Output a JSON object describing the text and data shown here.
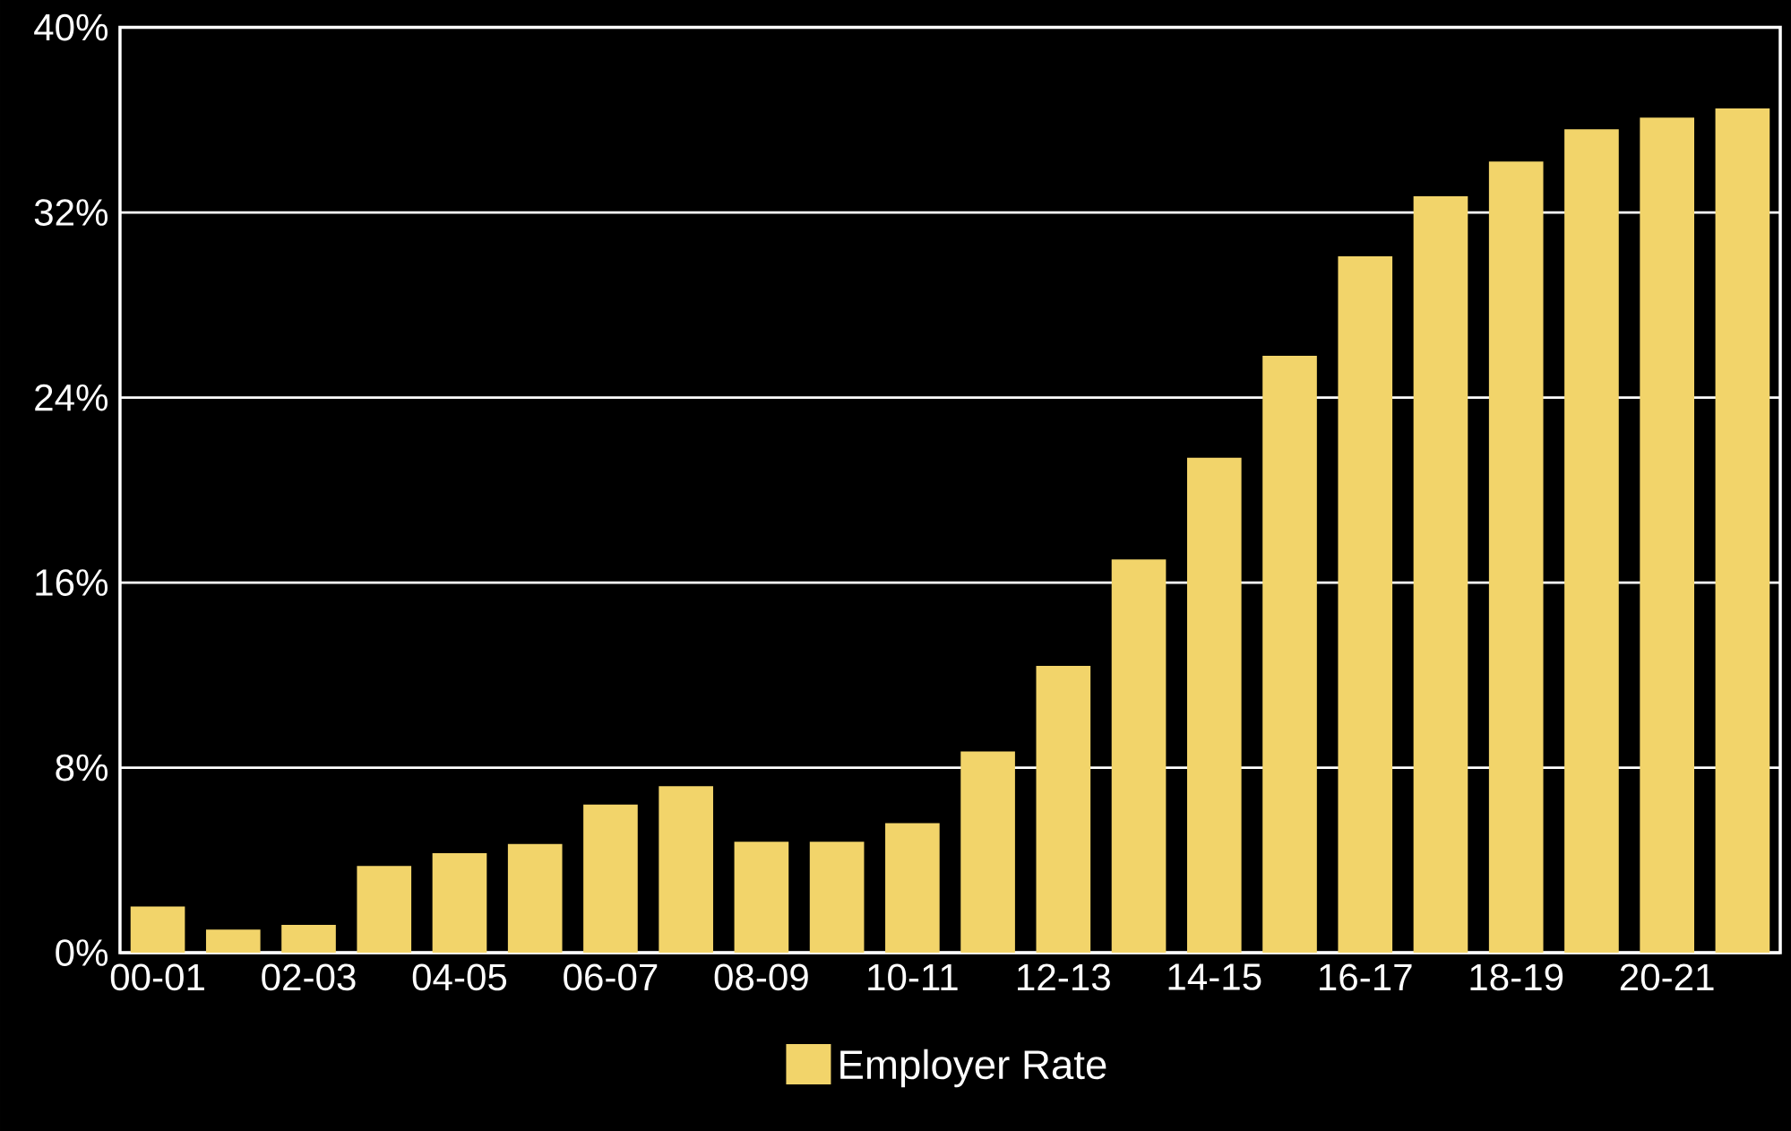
{
  "chart_data": {
    "type": "bar",
    "categories": [
      "00-01",
      null,
      "02-03",
      null,
      "04-05",
      null,
      "06-07",
      null,
      "08-09",
      null,
      "10-11",
      null,
      "12-13",
      null,
      "14-15",
      null,
      "16-17",
      null,
      "18-19",
      null,
      "20-21",
      null
    ],
    "series": [
      {
        "name": "Employer Rate",
        "color": "#f2d46a",
        "values": [
          2.0,
          1.0,
          1.2,
          3.75,
          4.3,
          4.7,
          6.4,
          7.2,
          4.8,
          4.8,
          5.6,
          8.7,
          12.4,
          17.0,
          21.4,
          25.8,
          30.1,
          32.7,
          34.2,
          35.6,
          36.1,
          36.5
        ]
      }
    ],
    "ylim": [
      0,
      40
    ],
    "yticks": [
      {
        "value": 0,
        "label": "0%"
      },
      {
        "value": 8,
        "label": "8%"
      },
      {
        "value": 16,
        "label": "16%"
      },
      {
        "value": 24,
        "label": "24%"
      },
      {
        "value": 32,
        "label": "32%"
      },
      {
        "value": 40,
        "label": "40%"
      }
    ],
    "grid": "y",
    "legend": "bottom"
  }
}
